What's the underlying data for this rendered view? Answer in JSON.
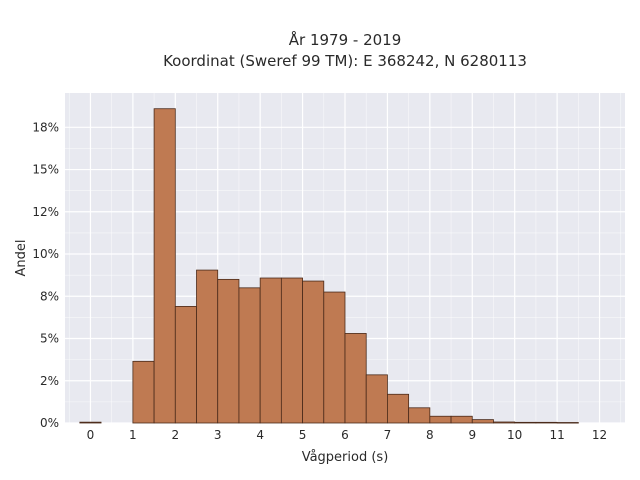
{
  "chart_data": {
    "type": "bar",
    "title": "År 1979 - 2019",
    "subtitle": "Koordinat (Sweref 99 TM): E 368242, N 6280113",
    "xlabel": "Vågperiod (s)",
    "ylabel": "Andel",
    "xlim": [
      -0.6,
      12.6
    ],
    "ylim": [
      0,
      0.1953
    ],
    "x_ticks": [
      {
        "value": 0,
        "label": "0"
      },
      {
        "value": 1,
        "label": "1"
      },
      {
        "value": 2,
        "label": "2"
      },
      {
        "value": 3,
        "label": "3"
      },
      {
        "value": 4,
        "label": "4"
      },
      {
        "value": 5,
        "label": "5"
      },
      {
        "value": 6,
        "label": "6"
      },
      {
        "value": 7,
        "label": "7"
      },
      {
        "value": 8,
        "label": "8"
      },
      {
        "value": 9,
        "label": "9"
      },
      {
        "value": 10,
        "label": "10"
      },
      {
        "value": 11,
        "label": "11"
      },
      {
        "value": 12,
        "label": "12"
      }
    ],
    "y_ticks": [
      {
        "value": 0,
        "label": "0%"
      },
      {
        "value": 0.025,
        "label": "2%"
      },
      {
        "value": 0.05,
        "label": "5%"
      },
      {
        "value": 0.075,
        "label": "8%"
      },
      {
        "value": 0.1,
        "label": "10%"
      },
      {
        "value": 0.125,
        "label": "12%"
      },
      {
        "value": 0.15,
        "label": "15%"
      },
      {
        "value": 0.175,
        "label": "18%"
      }
    ],
    "grid": true,
    "bin_width": 0.5,
    "bins": [
      {
        "start": -0.25,
        "value": 0.0005
      },
      {
        "start": 0.25,
        "value": 0.0
      },
      {
        "start": 0.75,
        "value": 0.0
      },
      {
        "start": 1.0,
        "value": 0.0365
      },
      {
        "start": 1.5,
        "value": 0.186
      },
      {
        "start": 2.0,
        "value": 0.069
      },
      {
        "start": 2.5,
        "value": 0.0905
      },
      {
        "start": 3.0,
        "value": 0.085
      },
      {
        "start": 3.5,
        "value": 0.08
      },
      {
        "start": 4.0,
        "value": 0.0858
      },
      {
        "start": 4.5,
        "value": 0.0858
      },
      {
        "start": 5.0,
        "value": 0.084
      },
      {
        "start": 5.5,
        "value": 0.0775
      },
      {
        "start": 6.0,
        "value": 0.053
      },
      {
        "start": 6.5,
        "value": 0.0285
      },
      {
        "start": 7.0,
        "value": 0.017
      },
      {
        "start": 7.5,
        "value": 0.009
      },
      {
        "start": 8.0,
        "value": 0.004
      },
      {
        "start": 8.5,
        "value": 0.004
      },
      {
        "start": 9.0,
        "value": 0.002
      },
      {
        "start": 9.5,
        "value": 0.0006
      },
      {
        "start": 10.0,
        "value": 0.0004
      },
      {
        "start": 10.5,
        "value": 0.0004
      },
      {
        "start": 11.0,
        "value": 0.0003
      }
    ],
    "colors": {
      "plot_background": "#e8e9f0",
      "grid": "#ffffff",
      "bar_fill": "#bf7a52",
      "bar_stroke": "#4a2a1a",
      "text": "#2a2a2a"
    }
  }
}
